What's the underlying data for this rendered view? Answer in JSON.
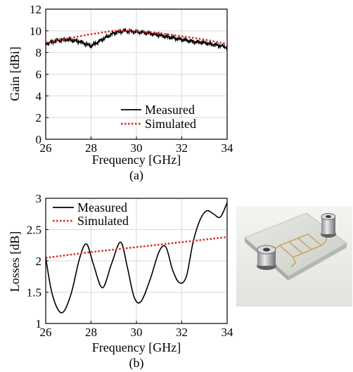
{
  "chart_data": [
    {
      "type": "line",
      "caption": "(a)",
      "xlabel": "Frequency [GHz]",
      "ylabel": "Gain [dBi]",
      "xlim": [
        26,
        34
      ],
      "ylim": [
        0,
        12
      ],
      "xticks": [
        26,
        28,
        30,
        32,
        34
      ],
      "yticks": [
        0,
        2,
        4,
        6,
        8,
        10,
        12
      ],
      "grid": true,
      "legend_position": "bottom-right",
      "series": [
        {
          "name": "Measured",
          "color": "#000000",
          "style": "solid",
          "x": [
            26,
            26.5,
            27,
            27.5,
            28,
            28.5,
            29,
            29.5,
            30,
            30.5,
            31,
            31.5,
            32,
            32.5,
            33,
            33.5,
            34
          ],
          "y": [
            8.8,
            9.1,
            9.2,
            9.0,
            8.6,
            9.2,
            9.8,
            10.0,
            9.9,
            9.8,
            9.6,
            9.4,
            9.2,
            9.0,
            8.9,
            8.7,
            8.5
          ]
        },
        {
          "name": "Simulated",
          "color": "#e02020",
          "style": "dotted",
          "x": [
            26,
            27,
            28,
            29,
            29.5,
            30,
            31,
            32,
            33,
            34
          ],
          "y": [
            8.9,
            9.3,
            9.7,
            10.0,
            10.0,
            9.95,
            9.8,
            9.5,
            9.2,
            8.8
          ]
        }
      ]
    },
    {
      "type": "line",
      "caption": "(b)",
      "xlabel": "Frequency [GHz]",
      "ylabel": "Losses [dB]",
      "xlim": [
        26,
        34
      ],
      "ylim": [
        1,
        3
      ],
      "xticks": [
        26,
        28,
        30,
        32,
        34
      ],
      "yticks": [
        1,
        1.5,
        2,
        2.5,
        3
      ],
      "grid": true,
      "legend_position": "top-left",
      "series": [
        {
          "name": "Measured",
          "color": "#000000",
          "style": "solid",
          "x": [
            26,
            26.3,
            26.7,
            27.1,
            27.5,
            27.8,
            28.1,
            28.5,
            28.9,
            29.3,
            29.6,
            29.9,
            30.2,
            30.6,
            31.0,
            31.3,
            31.6,
            31.9,
            32.2,
            32.5,
            32.8,
            33.1,
            33.4,
            33.7,
            34
          ],
          "y": [
            2.05,
            1.45,
            1.17,
            1.45,
            2.05,
            2.27,
            1.95,
            1.57,
            1.95,
            2.3,
            1.9,
            1.42,
            1.35,
            1.7,
            2.15,
            2.22,
            1.85,
            1.65,
            1.75,
            2.3,
            2.65,
            2.8,
            2.75,
            2.7,
            2.93
          ]
        },
        {
          "name": "Simulated",
          "color": "#e02020",
          "style": "dotted",
          "x": [
            26,
            28,
            30,
            32,
            34
          ],
          "y": [
            2.05,
            2.14,
            2.22,
            2.3,
            2.38
          ]
        }
      ]
    }
  ],
  "photo": {
    "device": "planar-antenna-prototype"
  }
}
